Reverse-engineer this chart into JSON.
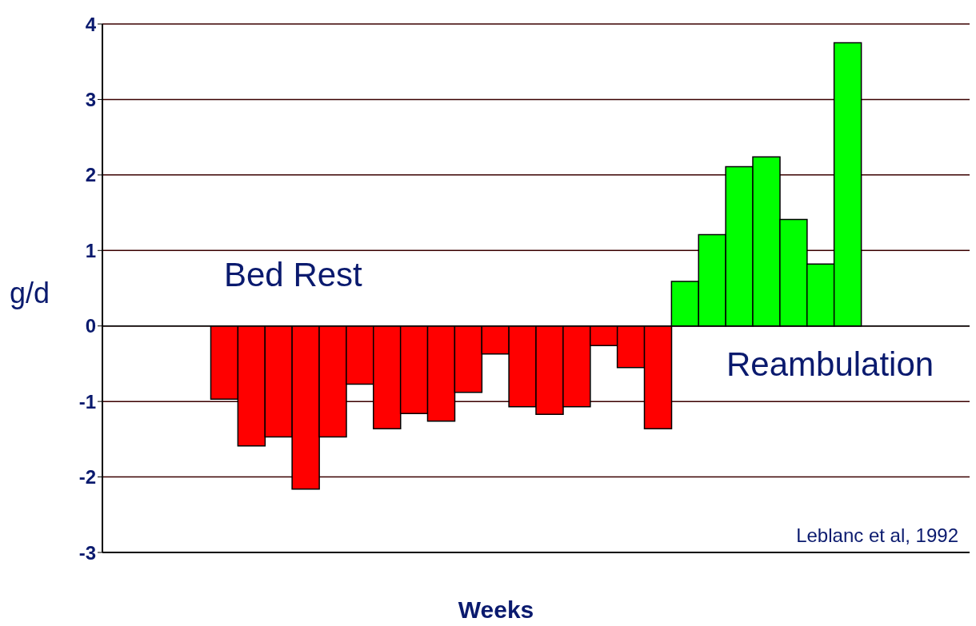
{
  "chart_data": {
    "type": "bar",
    "xlabel": "Weeks",
    "ylabel": "g/d",
    "categories": [
      null,
      null,
      null,
      null,
      null,
      null,
      null,
      null,
      null,
      null,
      null,
      null,
      null,
      null,
      null,
      null,
      null,
      null,
      null,
      null,
      null,
      null,
      null,
      null,
      null,
      null,
      null,
      null,
      null,
      null,
      null,
      null
    ],
    "values": [
      null,
      null,
      null,
      null,
      -0.97,
      -1.59,
      -1.47,
      -2.16,
      -1.47,
      -0.77,
      -1.36,
      -1.16,
      -1.26,
      -0.88,
      -0.37,
      -1.07,
      -1.17,
      -1.07,
      -0.26,
      -0.55,
      -1.36,
      0.59,
      1.21,
      2.11,
      2.24,
      1.41,
      0.82,
      3.75,
      null,
      null,
      null,
      null
    ],
    "colors": [
      null,
      null,
      null,
      null,
      "#ff0000",
      "#ff0000",
      "#ff0000",
      "#ff0000",
      "#ff0000",
      "#ff0000",
      "#ff0000",
      "#ff0000",
      "#ff0000",
      "#ff0000",
      "#ff0000",
      "#ff0000",
      "#ff0000",
      "#ff0000",
      "#ff0000",
      "#ff0000",
      "#ff0000",
      "#00ff00",
      "#00ff00",
      "#00ff00",
      "#00ff00",
      "#00ff00",
      "#00ff00",
      "#00ff00",
      null,
      null,
      null,
      null
    ],
    "ylim": [
      -3,
      4
    ],
    "yticks": [
      -3,
      -2,
      -1,
      0,
      1,
      2,
      3,
      4
    ],
    "grid": "y",
    "annotations": [
      "Bed Rest",
      "Reambulation",
      "Leblanc et al, 1992"
    ]
  }
}
